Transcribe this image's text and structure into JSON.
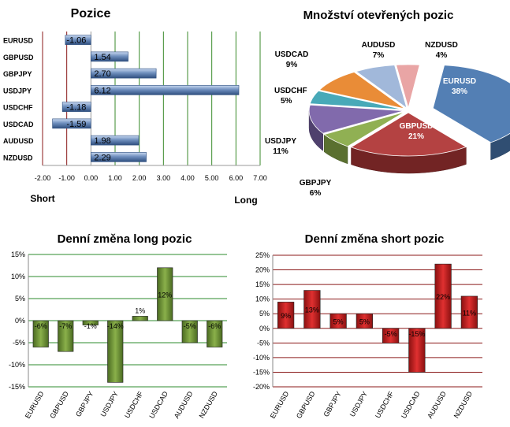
{
  "chart_data": [
    {
      "id": "positions",
      "type": "bar",
      "orientation": "horizontal",
      "title": "Pozice",
      "categories": [
        "EURUSD",
        "GBPUSD",
        "GBPJPY",
        "USDJPY",
        "USDCHF",
        "USDCAD",
        "AUDUSD",
        "NZDUSD"
      ],
      "values": [
        -1.06,
        1.54,
        2.7,
        6.12,
        -1.18,
        -1.59,
        1.98,
        2.29
      ],
      "value_labels": [
        "-1.06",
        "1.54",
        "2.70",
        "6.12",
        "-1.18",
        "-1.59",
        "1.98",
        "2.29"
      ],
      "xlim": [
        -2,
        7
      ],
      "ticks": [
        -2,
        -1,
        0,
        1,
        2,
        3,
        4,
        5,
        6,
        7
      ],
      "tick_labels": [
        "-2.00",
        "-1.00",
        "0.00",
        "1.00",
        "2.00",
        "3.00",
        "4.00",
        "5.00",
        "6.00",
        "7.00"
      ],
      "left_label": "Short",
      "right_label": "Long",
      "colors": {
        "bar": "#6f8fbe",
        "bar_dark": "#2f4f7f",
        "grid_short": "#8b1a1a",
        "grid_long": "#3a8a2a"
      }
    },
    {
      "id": "open_positions",
      "type": "pie",
      "title": "Množství otevřených pozic",
      "slices": [
        {
          "label": "EURUSD",
          "value": 38,
          "value_label": "38%",
          "color": "#4a78b0"
        },
        {
          "label": "GBPUSD",
          "value": 21,
          "value_label": "21%",
          "color": "#b03838"
        },
        {
          "label": "GBPJPY",
          "value": 6,
          "value_label": "6%",
          "color": "#8aac4a"
        },
        {
          "label": "USDJPY",
          "value": 11,
          "value_label": "11%",
          "color": "#7a62a8"
        },
        {
          "label": "USDCHF",
          "value": 5,
          "value_label": "5%",
          "color": "#3ea4b4"
        },
        {
          "label": "USDCAD",
          "value": 9,
          "value_label": "9%",
          "color": "#e8862c"
        },
        {
          "label": "AUDUSD",
          "value": 7,
          "value_label": "7%",
          "color": "#9cb4d8"
        },
        {
          "label": "NZDUSD",
          "value": 4,
          "value_label": "4%",
          "color": "#e8a0a0"
        }
      ]
    },
    {
      "id": "daily_long",
      "type": "bar",
      "title": "Denní změna long pozic",
      "categories": [
        "EURUSD",
        "GBPUSD",
        "GBPJPY",
        "USDJPY",
        "USDCHF",
        "USDCAD",
        "AUDUSD",
        "NZDUSD"
      ],
      "values": [
        -6,
        -7,
        -1,
        -14,
        1,
        12,
        -5,
        -6
      ],
      "value_labels": [
        "-6%",
        "-7%",
        "-1%",
        "-14%",
        "1%",
        "12%",
        "-5%",
        "-6%"
      ],
      "ylim": [
        -15,
        15
      ],
      "ticks": [
        -15,
        -10,
        -5,
        0,
        5,
        10,
        15
      ],
      "tick_labels": [
        "-15%",
        "-10%",
        "-5%",
        "0%",
        "5%",
        "10%",
        "15%"
      ],
      "colors": {
        "bar": "#8ab04a",
        "bar_dark": "#4a6a22",
        "grid": "#2e8b2e"
      }
    },
    {
      "id": "daily_short",
      "type": "bar",
      "title": "Denní změna short pozic",
      "categories": [
        "EURUSD",
        "GBPUSD",
        "GBPJPY",
        "USDJPY",
        "USDCHF",
        "USDCAD",
        "AUDUSD",
        "NZDUSD"
      ],
      "values": [
        9,
        13,
        5,
        5,
        -5,
        -15,
        22,
        11
      ],
      "value_labels": [
        "9%",
        "13%",
        "5%",
        "5%",
        "-5%",
        "-15%",
        "22%",
        "11%"
      ],
      "ylim": [
        -20,
        25
      ],
      "ticks": [
        -20,
        -15,
        -10,
        -5,
        0,
        5,
        10,
        15,
        20,
        25
      ],
      "tick_labels": [
        "-20%",
        "-15%",
        "-10%",
        "-5%",
        "0%",
        "5%",
        "10%",
        "15%",
        "20%",
        "25%"
      ],
      "colors": {
        "bar": "#e03030",
        "bar_dark": "#8a1010",
        "grid": "#8b1a1a"
      }
    }
  ]
}
